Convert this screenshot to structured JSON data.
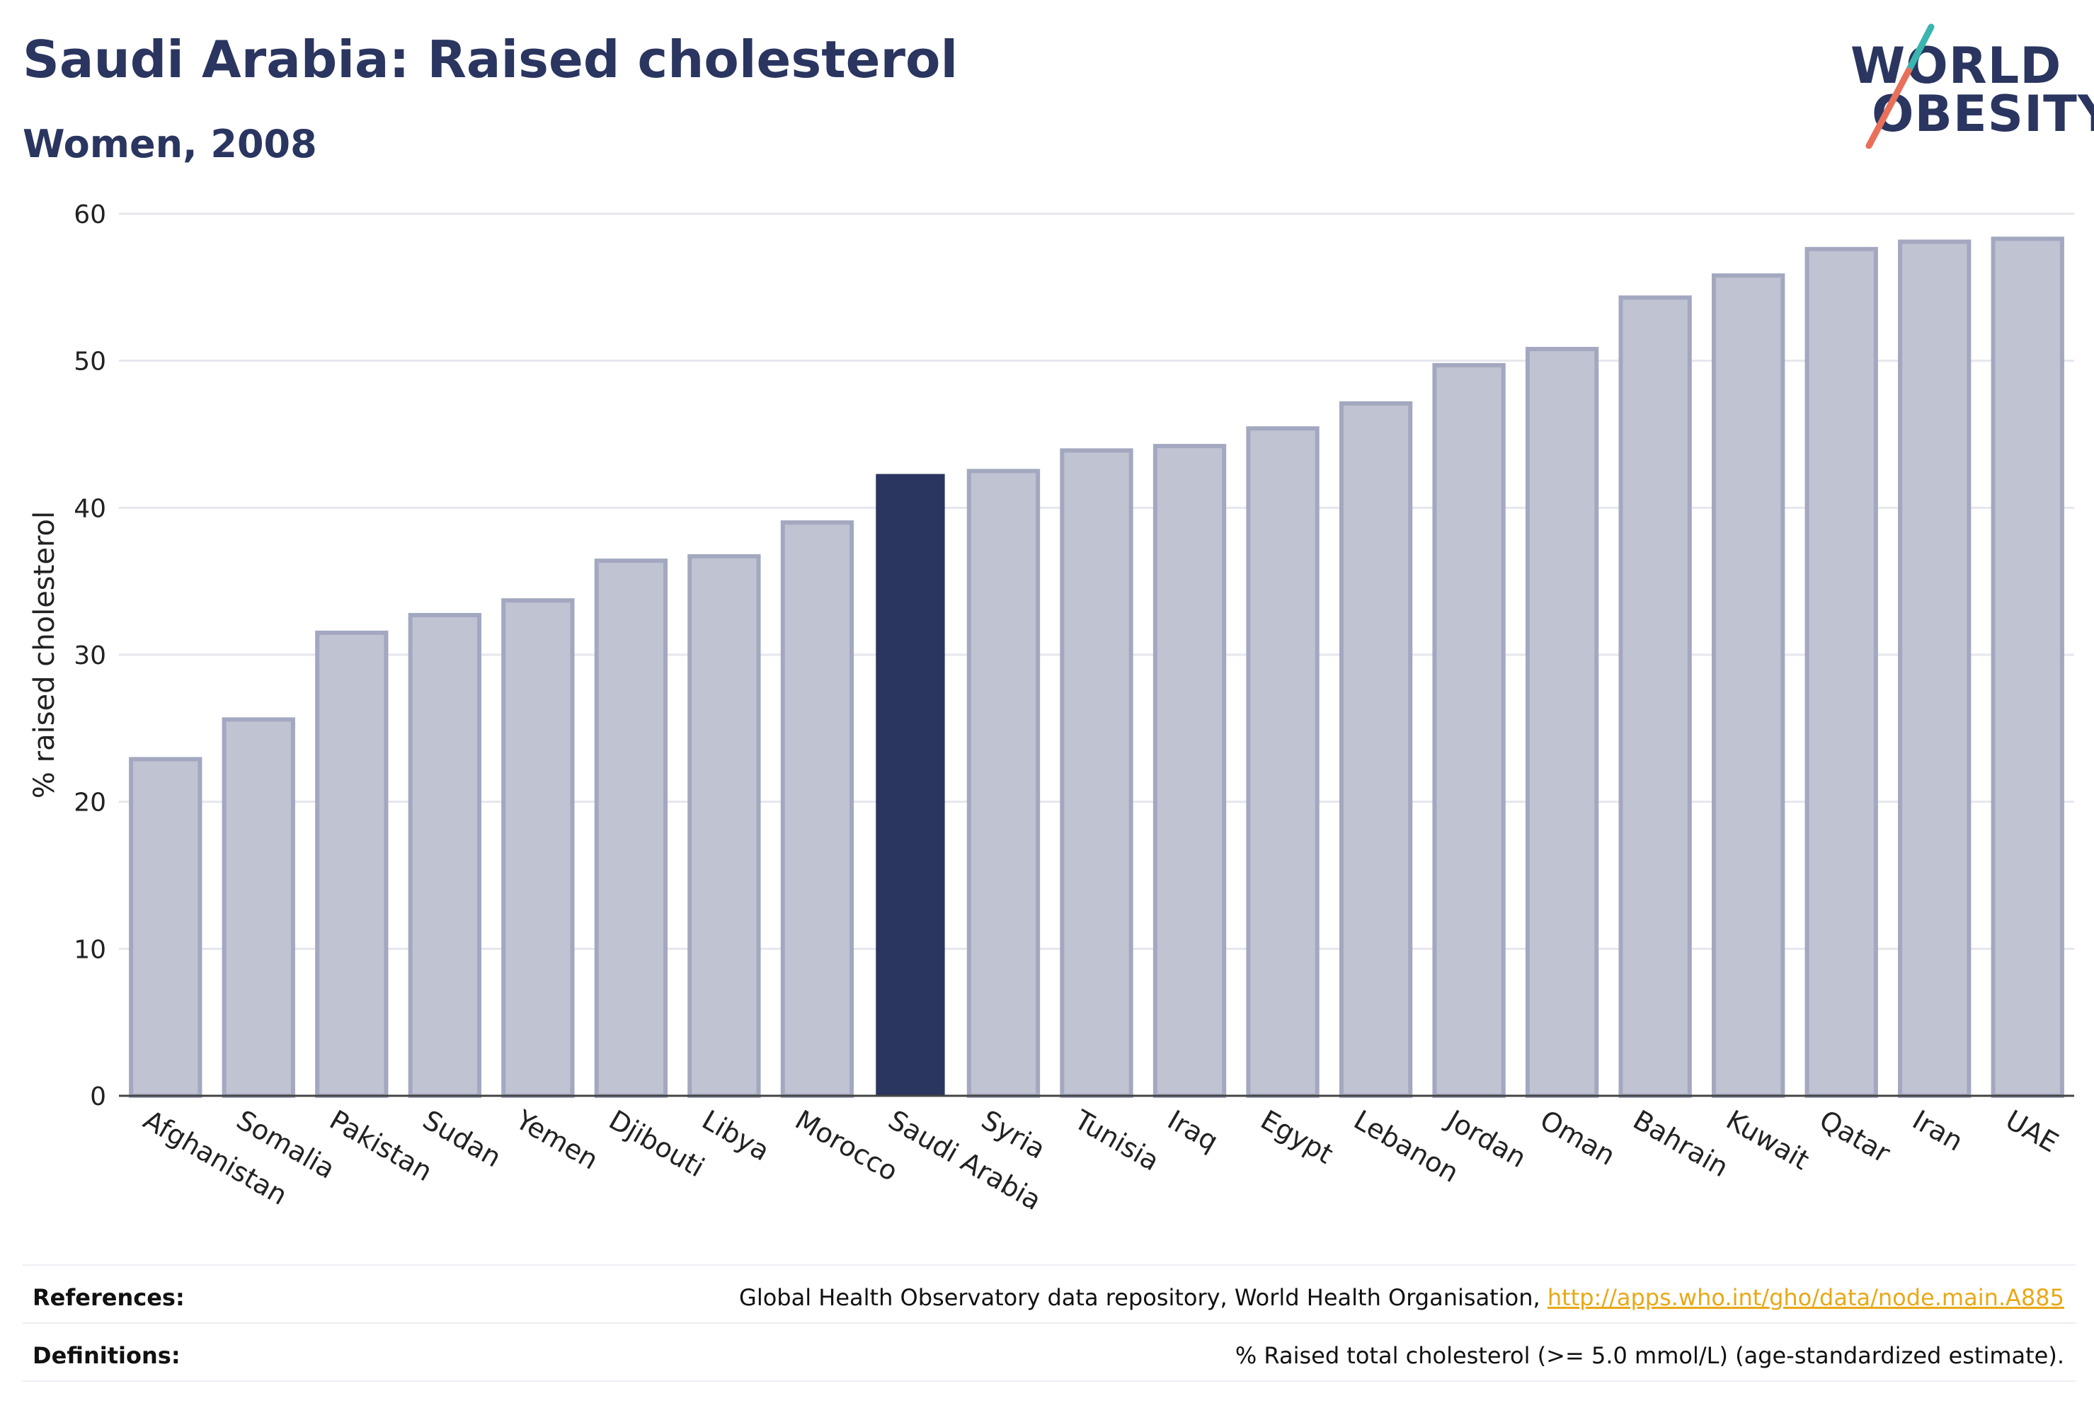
{
  "header": {
    "title": "Saudi Arabia: Raised cholesterol",
    "subtitle": "Women, 2008"
  },
  "logo": {
    "line1": "WORLD",
    "line2": "OBESITY",
    "accent_teal": "#3ab5b0",
    "accent_coral": "#e8705a"
  },
  "colors": {
    "bar": "#bfc3d2",
    "bar_border": "#a3a8c0",
    "highlight": "#2a3560",
    "grid": "#e6e7ee",
    "axis_text": "#222222"
  },
  "chart_data": {
    "type": "bar",
    "title": "",
    "ylabel": "% raised cholesterol",
    "xlabel": "",
    "ylim": [
      0,
      60
    ],
    "yticks": [
      0,
      10,
      20,
      30,
      40,
      50,
      60
    ],
    "grid": true,
    "highlight": "Saudi Arabia",
    "categories": [
      "Afghanistan",
      "Somalia",
      "Pakistan",
      "Sudan",
      "Yemen",
      "Djibouti",
      "Libya",
      "Morocco",
      "Saudi Arabia",
      "Syria",
      "Tunisia",
      "Iraq",
      "Egypt",
      "Lebanon",
      "Jordan",
      "Oman",
      "Bahrain",
      "Kuwait",
      "Qatar",
      "Iran",
      "UAE"
    ],
    "values": [
      22.9,
      25.6,
      31.5,
      32.7,
      33.7,
      36.4,
      36.7,
      39.0,
      42.3,
      42.5,
      43.9,
      44.2,
      45.4,
      47.1,
      49.7,
      50.8,
      54.3,
      55.8,
      57.6,
      58.1,
      58.3
    ]
  },
  "footer": {
    "references_label": "References:",
    "references_text": "Global Health Observatory data repository, World Health Organisation,",
    "references_link": "http://apps.who.int/gho/data/node.main.A885",
    "definitions_label": "Definitions:",
    "definitions_text": "% Raised total cholesterol (>= 5.0 mmol/L) (age-standardized estimate)."
  }
}
